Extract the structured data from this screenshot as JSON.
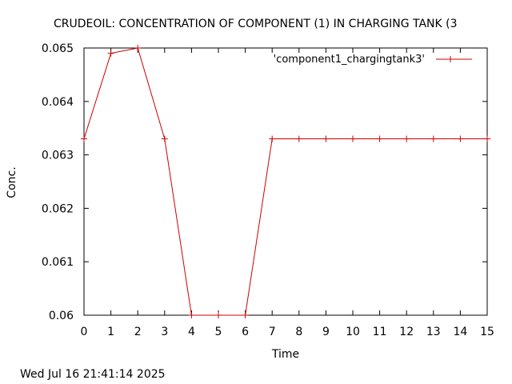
{
  "chart_data": {
    "type": "line",
    "title": "CRUDEOIL:   CONCENTRATION OF COMPONENT (1) IN CHARGING TANK (3",
    "xlabel": "Time",
    "ylabel": "Conc.",
    "xlim": [
      0,
      15
    ],
    "ylim": [
      0.06,
      0.065
    ],
    "x_ticks": [
      "0",
      "1",
      "2",
      "3",
      "4",
      "5",
      "6",
      "7",
      "8",
      "9",
      "10",
      "11",
      "12",
      "13",
      "14",
      "15"
    ],
    "y_ticks": [
      "0.06",
      "0.061",
      "0.062",
      "0.063",
      "0.064",
      "0.065"
    ],
    "legend_position": "top-right",
    "grid": false,
    "series": [
      {
        "name": "'component1_chargingtank3'",
        "color": "#cc0000",
        "x": [
          0,
          1,
          2,
          3,
          4,
          5,
          6,
          7,
          8,
          9,
          10,
          11,
          12,
          13,
          14,
          15
        ],
        "y": [
          0.0633,
          0.0649,
          0.065,
          0.0633,
          0.06,
          0.06,
          0.06,
          0.0633,
          0.0633,
          0.0633,
          0.0633,
          0.0633,
          0.0633,
          0.0633,
          0.0633,
          0.0633
        ]
      }
    ]
  },
  "footer": {
    "timestamp": "Wed Jul 16 21:41:14 2025"
  }
}
